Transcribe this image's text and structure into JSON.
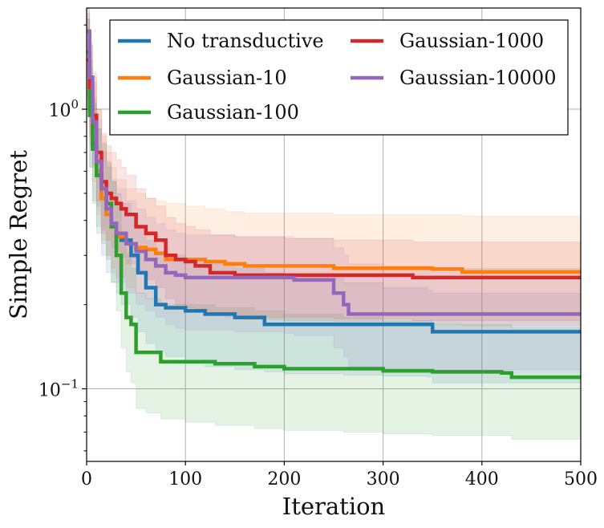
{
  "chart_data": {
    "type": "line",
    "title": "",
    "xlabel": "Iteration",
    "ylabel": "Simple Regret",
    "xlim": [
      0,
      500
    ],
    "ylim": [
      0.055,
      2.3
    ],
    "yscale": "log",
    "grid": true,
    "legend_position": "top",
    "x_ticks": [
      0,
      100,
      200,
      300,
      400,
      500
    ],
    "x_tick_labels": [
      "0",
      "100",
      "200",
      "300",
      "400",
      "500"
    ],
    "y_ticks": [
      1,
      0.1
    ],
    "y_tick_labels": [
      {
        "base": "10",
        "exp": "0"
      },
      {
        "base": "10",
        "exp": "−1"
      }
    ],
    "series": [
      {
        "name": "No transductive",
        "color": "#1f77b4",
        "x": [
          0,
          3,
          6,
          10,
          15,
          20,
          25,
          30,
          35,
          45,
          52,
          60,
          70,
          80,
          100,
          120,
          150,
          180,
          200,
          260,
          300,
          345,
          350,
          500
        ],
        "y": [
          1.5,
          1.0,
          0.75,
          0.58,
          0.48,
          0.42,
          0.39,
          0.36,
          0.34,
          0.3,
          0.26,
          0.23,
          0.2,
          0.195,
          0.19,
          0.185,
          0.18,
          0.17,
          0.17,
          0.17,
          0.17,
          0.17,
          0.16,
          0.16
        ],
        "upper": [
          2.1,
          1.5,
          1.1,
          0.85,
          0.7,
          0.62,
          0.55,
          0.5,
          0.46,
          0.42,
          0.38,
          0.34,
          0.31,
          0.3,
          0.29,
          0.28,
          0.27,
          0.26,
          0.25,
          0.24,
          0.23,
          0.225,
          0.22,
          0.22
        ],
        "lower": [
          1.0,
          0.62,
          0.46,
          0.36,
          0.3,
          0.26,
          0.24,
          0.22,
          0.2,
          0.18,
          0.16,
          0.145,
          0.135,
          0.13,
          0.125,
          0.12,
          0.117,
          0.115,
          0.113,
          0.112,
          0.111,
          0.11,
          0.105,
          0.105
        ]
      },
      {
        "name": "Gaussian-10",
        "color": "#ff7f0e",
        "x": [
          0,
          3,
          6,
          10,
          15,
          20,
          25,
          30,
          40,
          50,
          60,
          70,
          80,
          100,
          120,
          140,
          160,
          200,
          250,
          300,
          350,
          380,
          500
        ],
        "y": [
          1.6,
          1.1,
          0.8,
          0.6,
          0.48,
          0.42,
          0.38,
          0.35,
          0.33,
          0.32,
          0.315,
          0.305,
          0.29,
          0.29,
          0.285,
          0.28,
          0.275,
          0.275,
          0.27,
          0.27,
          0.268,
          0.262,
          0.262
        ],
        "upper": [
          2.3,
          1.7,
          1.3,
          1.0,
          0.8,
          0.7,
          0.62,
          0.56,
          0.52,
          0.5,
          0.48,
          0.47,
          0.46,
          0.45,
          0.44,
          0.43,
          0.425,
          0.425,
          0.42,
          0.42,
          0.42,
          0.415,
          0.415
        ],
        "lower": [
          1.1,
          0.75,
          0.55,
          0.42,
          0.34,
          0.3,
          0.27,
          0.25,
          0.23,
          0.22,
          0.21,
          0.2,
          0.195,
          0.19,
          0.185,
          0.18,
          0.177,
          0.175,
          0.172,
          0.17,
          0.17,
          0.168,
          0.168
        ]
      },
      {
        "name": "Gaussian-100",
        "color": "#2ca02c",
        "x": [
          0,
          3,
          6,
          10,
          15,
          20,
          25,
          30,
          35,
          40,
          45,
          50,
          60,
          75,
          100,
          130,
          170,
          200,
          260,
          300,
          350,
          420,
          430,
          500
        ],
        "y": [
          1.6,
          0.95,
          0.72,
          0.58,
          0.52,
          0.46,
          0.38,
          0.3,
          0.22,
          0.18,
          0.17,
          0.135,
          0.135,
          0.125,
          0.125,
          0.123,
          0.12,
          0.118,
          0.118,
          0.116,
          0.115,
          0.114,
          0.11,
          0.11
        ],
        "upper": [
          2.2,
          1.4,
          1.05,
          0.85,
          0.75,
          0.65,
          0.55,
          0.45,
          0.36,
          0.3,
          0.27,
          0.22,
          0.21,
          0.2,
          0.2,
          0.195,
          0.19,
          0.185,
          0.18,
          0.175,
          0.17,
          0.17,
          0.165,
          0.165
        ],
        "lower": [
          1.1,
          0.62,
          0.47,
          0.38,
          0.33,
          0.29,
          0.24,
          0.19,
          0.14,
          0.115,
          0.105,
          0.085,
          0.082,
          0.078,
          0.076,
          0.074,
          0.072,
          0.071,
          0.07,
          0.069,
          0.068,
          0.068,
          0.066,
          0.066
        ]
      },
      {
        "name": "Gaussian-1000",
        "color": "#d62728",
        "x": [
          0,
          3,
          6,
          10,
          15,
          20,
          25,
          30,
          35,
          40,
          50,
          60,
          70,
          80,
          90,
          100,
          110,
          125,
          150,
          200,
          250,
          300,
          330,
          500
        ],
        "y": [
          1.5,
          1.2,
          0.95,
          0.7,
          0.55,
          0.5,
          0.48,
          0.46,
          0.44,
          0.42,
          0.38,
          0.36,
          0.34,
          0.3,
          0.29,
          0.285,
          0.275,
          0.26,
          0.255,
          0.255,
          0.255,
          0.255,
          0.25,
          0.25
        ],
        "upper": [
          2.1,
          1.7,
          1.35,
          1.0,
          0.82,
          0.74,
          0.7,
          0.66,
          0.62,
          0.58,
          0.52,
          0.48,
          0.45,
          0.41,
          0.39,
          0.38,
          0.37,
          0.355,
          0.35,
          0.345,
          0.34,
          0.34,
          0.335,
          0.335
        ],
        "lower": [
          1.0,
          0.8,
          0.63,
          0.47,
          0.37,
          0.34,
          0.32,
          0.31,
          0.295,
          0.28,
          0.26,
          0.245,
          0.23,
          0.21,
          0.2,
          0.195,
          0.19,
          0.185,
          0.18,
          0.18,
          0.178,
          0.178,
          0.175,
          0.175
        ]
      },
      {
        "name": "Gaussian-10000",
        "color": "#9467bd",
        "x": [
          0,
          3,
          6,
          10,
          15,
          20,
          25,
          30,
          40,
          50,
          60,
          70,
          80,
          90,
          100,
          150,
          200,
          210,
          250,
          260,
          265,
          300,
          350,
          500
        ],
        "y": [
          1.9,
          1.3,
          0.9,
          0.65,
          0.52,
          0.44,
          0.39,
          0.36,
          0.33,
          0.31,
          0.29,
          0.275,
          0.26,
          0.255,
          0.25,
          0.25,
          0.25,
          0.245,
          0.22,
          0.2,
          0.185,
          0.185,
          0.185,
          0.185
        ],
        "upper": [
          2.3,
          1.75,
          1.25,
          0.92,
          0.76,
          0.64,
          0.56,
          0.52,
          0.47,
          0.44,
          0.41,
          0.39,
          0.37,
          0.36,
          0.355,
          0.35,
          0.35,
          0.345,
          0.32,
          0.3,
          0.28,
          0.275,
          0.27,
          0.27
        ],
        "lower": [
          1.3,
          0.9,
          0.62,
          0.45,
          0.36,
          0.3,
          0.26,
          0.24,
          0.22,
          0.2,
          0.19,
          0.18,
          0.17,
          0.165,
          0.162,
          0.16,
          0.158,
          0.155,
          0.14,
          0.13,
          0.12,
          0.118,
          0.117,
          0.117
        ]
      }
    ]
  }
}
